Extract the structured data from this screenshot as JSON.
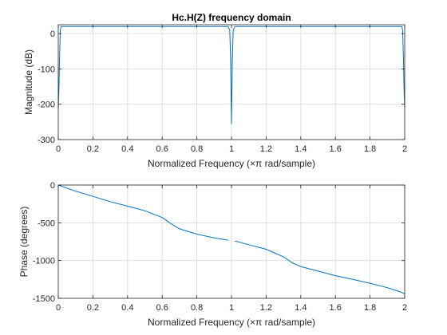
{
  "colors": {
    "line": "#0072BD",
    "grid": "#dfdfdf",
    "axis": "#262626"
  },
  "chart_data": [
    {
      "type": "line",
      "title": "Hc.H(Z) frequency domain",
      "xlabel": "Normalized Frequency  (×π rad/sample)",
      "ylabel": "Magnitude (dB)",
      "xlim": [
        0,
        2
      ],
      "ylim": [
        -300,
        25
      ],
      "xticks": [
        0,
        0.2,
        0.4,
        0.6,
        0.8,
        1,
        1.2,
        1.4,
        1.6,
        1.8,
        2
      ],
      "xtick_labels": [
        "0",
        "0.2",
        "0.4",
        "0.6",
        "0.8",
        "1",
        "1.2",
        "1.4",
        "1.6",
        "1.8",
        "2"
      ],
      "yticks": [
        -300,
        -200,
        -100,
        0
      ],
      "ytick_labels": [
        "-300",
        "-200",
        "-100",
        "0"
      ],
      "grid": true,
      "series": [
        {
          "x": [
            0,
            0.004,
            0.008,
            0.012,
            0.016,
            0.5,
            0.98,
            0.99,
            0.995,
            1.0,
            1.005,
            1.01,
            1.02,
            1.5,
            1.984,
            1.988,
            1.992,
            1.996,
            2.0
          ],
          "y": [
            -210,
            -150,
            -60,
            10,
            20,
            20,
            20,
            10,
            -70,
            -255,
            -70,
            10,
            20,
            20,
            20,
            10,
            -60,
            -150,
            -210
          ]
        }
      ]
    },
    {
      "type": "line",
      "title": "",
      "xlabel": "Normalized Frequency  (×π rad/sample)",
      "ylabel": "Phase (degrees)",
      "xlim": [
        0,
        2
      ],
      "ylim": [
        -1500,
        0
      ],
      "xticks": [
        0,
        0.2,
        0.4,
        0.6,
        0.8,
        1,
        1.2,
        1.4,
        1.6,
        1.8,
        2
      ],
      "xtick_labels": [
        "0",
        "0.2",
        "0.4",
        "0.6",
        "0.8",
        "1",
        "1.2",
        "1.4",
        "1.6",
        "1.8",
        "2"
      ],
      "yticks": [
        -1500,
        -1000,
        -500,
        0
      ],
      "ytick_labels": [
        "-1500",
        "-1000",
        "-500",
        "0"
      ],
      "grid": true,
      "series": [
        {
          "x": [
            0,
            0.05,
            0.1,
            0.2,
            0.3,
            0.4,
            0.5,
            0.6,
            0.65,
            0.7,
            0.8,
            0.9,
            0.98
          ],
          "y": [
            0,
            -40,
            -80,
            -150,
            -220,
            -280,
            -340,
            -430,
            -510,
            -580,
            -650,
            -700,
            -730
          ]
        },
        {
          "x": [
            1.02,
            1.1,
            1.2,
            1.3,
            1.35,
            1.4,
            1.5,
            1.6,
            1.7,
            1.8,
            1.9,
            1.97,
            2.0
          ],
          "y": [
            -740,
            -790,
            -850,
            -950,
            -1030,
            -1080,
            -1140,
            -1200,
            -1250,
            -1300,
            -1360,
            -1410,
            -1440
          ]
        }
      ]
    }
  ]
}
